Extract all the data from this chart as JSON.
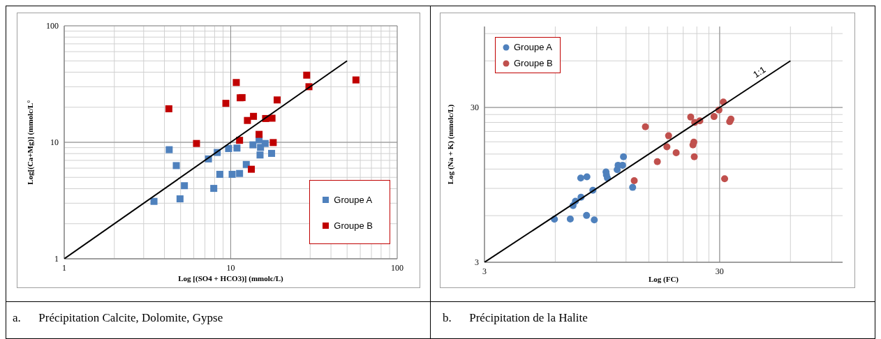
{
  "chart_data": [
    {
      "type": "scatter",
      "xlabel": "Log [(SO4 + HCO3)] (mmolc/L)",
      "ylabel": "Log[(Ca+Mg)] (mmolc/L°",
      "xlim": [
        1,
        100
      ],
      "ylim": [
        1,
        100
      ],
      "xticks": [
        1,
        10,
        100
      ],
      "yticks": [
        1,
        10,
        100
      ],
      "log": "xy",
      "grid": true,
      "legend": "bottom right",
      "annotations": [
        "a.      Précipitation Calcite, Dolomite, Gypse"
      ],
      "series": [
        {
          "name": "Groupe A",
          "color": "#4f81bd",
          "marker": "square",
          "x": [
            4.27,
            4.71,
            5.27,
            4.96,
            3.46,
            7.35,
            8.3,
            7.91,
            8.6,
            10.2,
            11.3,
            9.71,
            10.9,
            12.4,
            13.6,
            14.8,
            15.1,
            16.1,
            15.0,
            17.6
          ],
          "values": [
            8.64,
            6.31,
            4.24,
            3.27,
            3.11,
            7.2,
            8.18,
            4.02,
            5.31,
            5.31,
            5.4,
            8.84,
            8.92,
            6.45,
            9.51,
            10.5,
            9.04,
            9.77,
            7.78,
            8.03
          ]
        },
        {
          "name": "Groupe B",
          "color": "#c00000",
          "marker": "square",
          "x": [
            4.25,
            6.23,
            9.35,
            10.8,
            11.4,
            11.7,
            12.6,
            13.7,
            16.2,
            17.7,
            19.0,
            14.8,
            11.3,
            18.0,
            13.3,
            28.6,
            29.5,
            56.5
          ],
          "values": [
            19.4,
            9.77,
            21.6,
            32.6,
            24.1,
            24.2,
            15.4,
            16.7,
            16.0,
            16.1,
            23.1,
            11.7,
            10.4,
            9.95,
            5.87,
            37.7,
            30.0,
            34.3
          ]
        },
        {
          "type": "line",
          "color": "#000000",
          "marker": "none",
          "x": [
            1,
            50
          ],
          "values": [
            1,
            50
          ]
        }
      ]
    },
    {
      "type": "scatter",
      "xlabel": "Log (FC)",
      "ylabel": "Log (Na + K)  (mmolc/L)",
      "xlim": [
        3,
        100
      ],
      "ylim": [
        3,
        100
      ],
      "xticks": [
        3,
        30
      ],
      "yticks": [
        3,
        30
      ],
      "log": "xy",
      "grid": true,
      "legend": "top left",
      "annotations": [
        "b.      Précipitation de la Halite",
        {
          "text": "1:1",
          "x": 45,
          "y": 45
        }
      ],
      "series": [
        {
          "name": "Groupe A",
          "color": "#4f81bd",
          "marker": "circle",
          "x": [
            5.95,
            6.95,
            8.15,
            8.79,
            7.14,
            7.31,
            7.72,
            8.67,
            7.7,
            8.18,
            9.86,
            9.9,
            10.0,
            11.0,
            11.1,
            11.6,
            11.7,
            12.8
          ],
          "values": [
            5.69,
            5.71,
            6.02,
            5.63,
            6.97,
            7.43,
            7.89,
            8.75,
            10.5,
            10.7,
            11.5,
            11.0,
            10.5,
            11.9,
            12.7,
            12.7,
            14.4,
            9.14
          ]
        },
        {
          "name": "Groupe B",
          "color": "#c0504d",
          "marker": "circle",
          "x": [
            13.0,
            14.5,
            16.3,
            17.9,
            18.2,
            19.6,
            23.4,
            23.1,
            23.3,
            22.6,
            23.5,
            24.7,
            28.4,
            29.8,
            31.1,
            33.1,
            33.5,
            31.5
          ],
          "values": [
            10.1,
            22.5,
            13.4,
            16.7,
            19.7,
            15.3,
            14.4,
            17.2,
            17.9,
            26.0,
            24.0,
            24.6,
            26.2,
            28.9,
            32.5,
            24.3,
            25.2,
            10.4
          ]
        },
        {
          "type": "line",
          "color": "#000000",
          "marker": "none",
          "x": [
            3,
            60
          ],
          "values": [
            3,
            60
          ]
        }
      ]
    }
  ]
}
